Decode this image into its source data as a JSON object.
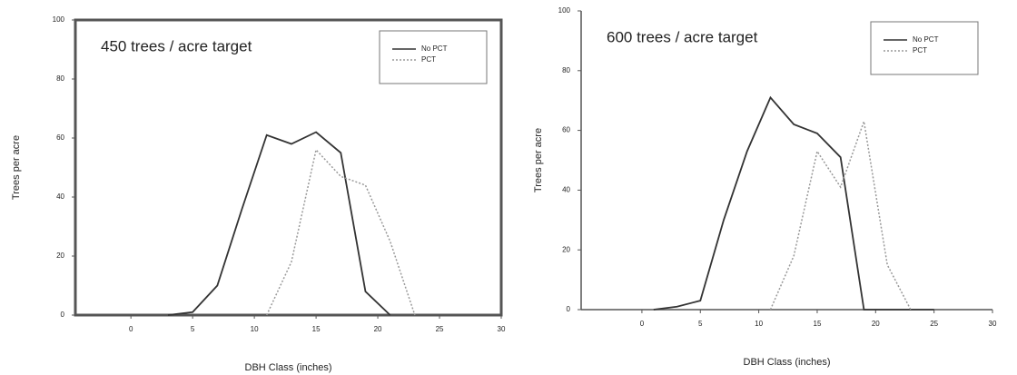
{
  "chart_data": [
    {
      "type": "line",
      "title": "450 trees / acre target",
      "x_label": "DBH Class (inches)",
      "y_label": "Trees per acre",
      "x": [
        3,
        5,
        7,
        9,
        11,
        13,
        15,
        17,
        19,
        21,
        23
      ],
      "series": [
        {
          "name": "No PCT",
          "color": "#333333",
          "style": "solid",
          "values": [
            0,
            1,
            10,
            36,
            61,
            58,
            62,
            55,
            8,
            0,
            null
          ]
        },
        {
          "name": "PCT",
          "color": "#999999",
          "style": "dotted",
          "values": [
            null,
            null,
            null,
            null,
            0,
            18,
            56,
            47,
            44,
            25,
            0
          ]
        }
      ],
      "xlim": [
        -4.5,
        30
      ],
      "xticks": [
        0,
        5,
        10,
        15,
        20,
        25,
        30
      ],
      "ylim": [
        0,
        100
      ],
      "yticks": [
        0,
        20,
        40,
        60,
        80,
        100
      ],
      "legend": "upper right",
      "frame": true
    },
    {
      "type": "line",
      "title": "600 trees / acre target",
      "x_label": "DBH Class (inches)",
      "y_label": "Trees per acre",
      "x": [
        1,
        3,
        5,
        7,
        9,
        11,
        13,
        15,
        17,
        19,
        21,
        23,
        25
      ],
      "series": [
        {
          "name": "No PCT",
          "color": "#333333",
          "style": "solid",
          "values": [
            0,
            1,
            3,
            30,
            53,
            71,
            62,
            59,
            51,
            0,
            0,
            0,
            0
          ]
        },
        {
          "name": "PCT",
          "color": "#999999",
          "style": "dotted",
          "values": [
            null,
            null,
            null,
            null,
            null,
            0,
            18,
            53,
            41,
            63,
            15,
            0,
            null
          ]
        }
      ],
      "xlim": [
        -5.2,
        30
      ],
      "xticks": [
        0,
        5,
        10,
        15,
        20,
        25,
        30
      ],
      "ylim": [
        0,
        100
      ],
      "yticks": [
        0,
        20,
        40,
        60,
        80,
        100
      ],
      "legend": "upper right",
      "frame": false
    }
  ]
}
